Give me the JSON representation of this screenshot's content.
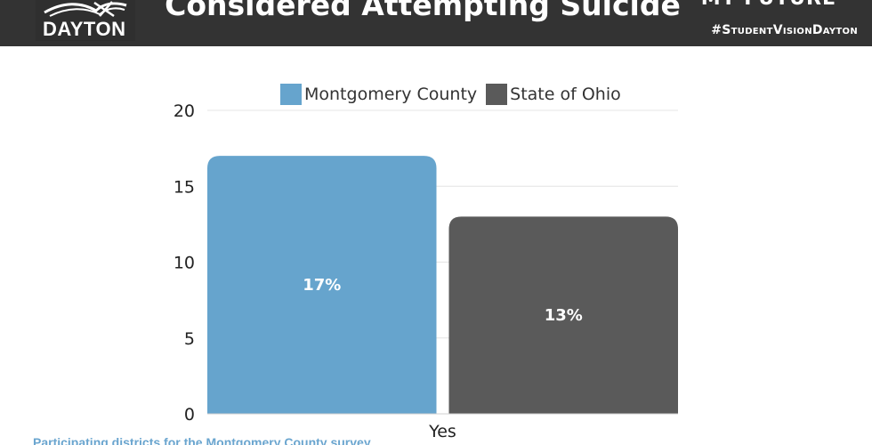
{
  "header": {
    "logo_text": "DAYTON",
    "title": "Considered Attempting Suicide",
    "brand_top": "MY FUTURE",
    "hashtag": "#StudentVisionDayton"
  },
  "footnote": "Participating districts for the Montgomery County survey",
  "colors": {
    "header_bg": "#333333",
    "montgomery": "#66a4cd",
    "ohio": "#5a5a5a",
    "footnote": "#6aa5cf"
  },
  "chart_data": {
    "type": "bar",
    "categories": [
      "Yes"
    ],
    "series": [
      {
        "name": "Montgomery County",
        "values": [
          17
        ],
        "data_labels": [
          "17%"
        ],
        "color": "#66a4cd"
      },
      {
        "name": "State of Ohio",
        "values": [
          13
        ],
        "data_labels": [
          "13%"
        ],
        "color": "#5a5a5a"
      }
    ],
    "y_ticks": [
      "0",
      "5",
      "10",
      "15",
      "20"
    ],
    "ylim": [
      0,
      20
    ],
    "grid": true,
    "legend_position": "top"
  }
}
